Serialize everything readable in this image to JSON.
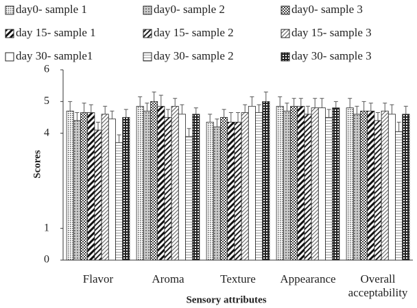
{
  "chart_data": {
    "type": "bar",
    "x_label": "Sensory attributes",
    "y_label": "Scores",
    "categories": [
      "Flavor",
      "Aroma",
      "Texture",
      "Appearance",
      "Overall acceptability"
    ],
    "ylim": [
      0,
      6
    ],
    "yticks": [
      0,
      1,
      4,
      5,
      6
    ],
    "series": [
      {
        "name": "day0- sample 1",
        "pattern": "p0",
        "values": [
          4.7,
          4.85,
          4.35,
          4.85,
          4.8
        ],
        "errors": [
          0.3,
          0.3,
          0.25,
          0.3,
          0.3
        ]
      },
      {
        "name": "day0- sample 2",
        "pattern": "p1",
        "values": [
          4.4,
          4.7,
          4.2,
          4.7,
          4.6
        ],
        "errors": [
          0.25,
          0.25,
          0.25,
          0.25,
          0.25
        ]
      },
      {
        "name": "day0- sample 3",
        "pattern": "p2",
        "values": [
          4.65,
          5.0,
          4.5,
          4.85,
          4.7
        ],
        "errors": [
          0.3,
          0.3,
          0.25,
          0.25,
          0.3
        ]
      },
      {
        "name": "day 15- sample 1",
        "pattern": "p3",
        "values": [
          4.65,
          4.85,
          4.35,
          4.85,
          4.7
        ],
        "errors": [
          0.25,
          0.35,
          0.3,
          0.25,
          0.25
        ]
      },
      {
        "name": "day 15- sample 2",
        "pattern": "p4",
        "values": [
          4.1,
          4.5,
          4.35,
          4.6,
          4.4
        ],
        "errors": [
          0.25,
          0.25,
          0.3,
          0.25,
          0.25
        ]
      },
      {
        "name": "day 15- sample 3",
        "pattern": "p5",
        "values": [
          4.6,
          4.85,
          4.65,
          4.8,
          4.7
        ],
        "errors": [
          0.25,
          0.25,
          0.25,
          0.3,
          0.25
        ]
      },
      {
        "name": "day 30- sample1",
        "pattern": "p6",
        "values": [
          4.45,
          4.6,
          4.85,
          4.8,
          4.6
        ],
        "errors": [
          0.25,
          0.3,
          0.3,
          0.3,
          0.3
        ]
      },
      {
        "name": "day 30- sample 2",
        "pattern": "p7",
        "values": [
          3.7,
          3.9,
          4.65,
          4.5,
          4.05
        ],
        "errors": [
          0.25,
          0.25,
          0.25,
          0.25,
          0.3
        ]
      },
      {
        "name": "day 30- sample 3",
        "pattern": "p8",
        "values": [
          4.5,
          4.6,
          5.0,
          4.8,
          4.6
        ],
        "errors": [
          0.25,
          0.2,
          0.3,
          0.2,
          0.25
        ]
      }
    ]
  }
}
